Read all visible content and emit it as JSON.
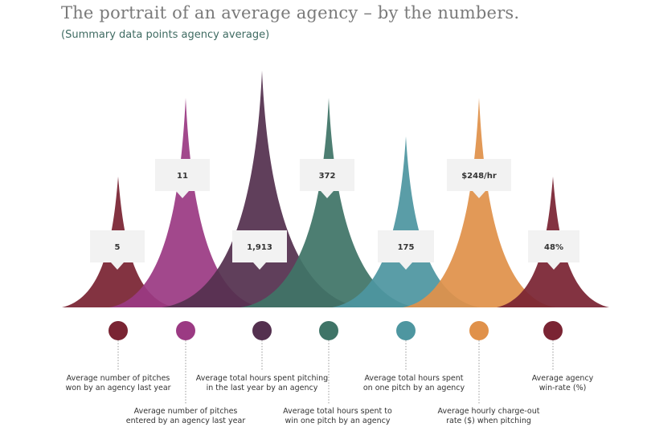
{
  "title": "The portrait of an average agency – by the numbers.",
  "subtitle": "(Summary data points agency average)",
  "chart_data": {
    "type": "area",
    "categories": [
      "Average number of pitches won by an agency last year",
      "Average number of pitches entered by an agency last year",
      "Average total hours spent pitching in the last year by an agency",
      "Average total hours spent to win one pitch by an agency",
      "Average total hours spent on one pitch by an agency",
      "Average hourly charge-out rate ($) when pitching",
      "Average agency win-rate (%)"
    ],
    "value_labels": [
      "5",
      "11",
      "1,913",
      "372",
      "175",
      "$248/hr",
      "48%"
    ],
    "values": [
      5,
      11,
      1913,
      372,
      175,
      248,
      48
    ]
  },
  "peaks": [
    {
      "value_label": "5",
      "desc_lines": [
        "Average number of pitches",
        "won by an agency last year"
      ],
      "color": "#7a2433"
    },
    {
      "value_label": "11",
      "desc_lines": [
        "Average number of pitches",
        "entered by an agency last year"
      ],
      "color": "#9b3a83"
    },
    {
      "value_label": "1,913",
      "desc_lines": [
        "Average total hours spent pitching",
        "in the last year by an agency"
      ],
      "color": "#54304f"
    },
    {
      "value_label": "372",
      "desc_lines": [
        "Average total hours spent to",
        "win one pitch by an agency"
      ],
      "color": "#3f7467"
    },
    {
      "value_label": "175",
      "desc_lines": [
        "Average total hours spent",
        "on one pitch by an agency"
      ],
      "color": "#4e96a0"
    },
    {
      "value_label": "$248/hr",
      "desc_lines": [
        "Average hourly charge-out",
        "rate ($) when pitching"
      ],
      "color": "#e0914a"
    },
    {
      "value_label": "48%",
      "desc_lines": [
        "Average agency",
        "win-rate (%)"
      ],
      "color": "#7a2433"
    }
  ]
}
